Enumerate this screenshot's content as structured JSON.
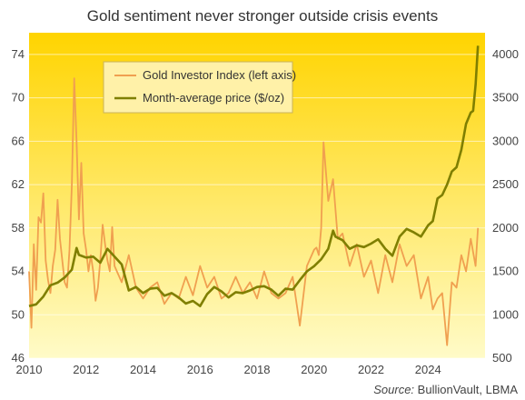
{
  "chart_data": {
    "type": "line",
    "title": "Gold sentiment never stronger outside crisis events",
    "source_label": "Source:",
    "source_text": "BullionVault, LBMA",
    "x_ticks": [
      "2010",
      "2012",
      "2014",
      "2016",
      "2018",
      "2020",
      "2022",
      "2024"
    ],
    "xlim": [
      2010,
      2026
    ],
    "y_left": {
      "ticks": [
        "46",
        "50",
        "54",
        "58",
        "62",
        "66",
        "70",
        "74"
      ],
      "ylim": [
        46,
        76
      ]
    },
    "y_right": {
      "ticks": [
        "500",
        "1000",
        "1500",
        "2000",
        "2500",
        "3000",
        "3500",
        "4000"
      ],
      "ylim": [
        500,
        4250
      ]
    },
    "grid": "horizontal",
    "legend_position": "top-left",
    "colors": {
      "bg_top": "#ffd400",
      "bg_bottom": "#fffbc8",
      "index": "#f0a050",
      "price": "#7f7f00"
    },
    "series": [
      {
        "name": "Gold Investor Index (left axis)",
        "axis": "left",
        "x": [
          2010.0,
          2010.083,
          2010.167,
          2010.25,
          2010.333,
          2010.417,
          2010.5,
          2010.583,
          2010.667,
          2010.75,
          2010.833,
          2010.917,
          2011.0,
          2011.083,
          2011.167,
          2011.25,
          2011.333,
          2011.417,
          2011.5,
          2011.583,
          2011.667,
          2011.75,
          2011.833,
          2011.917,
          2012.0,
          2012.083,
          2012.167,
          2012.25,
          2012.333,
          2012.417,
          2012.5,
          2012.583,
          2012.667,
          2012.75,
          2012.833,
          2012.917,
          2013.0,
          2013.25,
          2013.5,
          2013.75,
          2014.0,
          2014.25,
          2014.5,
          2014.75,
          2015.0,
          2015.25,
          2015.5,
          2015.75,
          2016.0,
          2016.25,
          2016.5,
          2016.75,
          2017.0,
          2017.25,
          2017.5,
          2017.75,
          2018.0,
          2018.25,
          2018.5,
          2018.75,
          2019.0,
          2019.25,
          2019.5,
          2019.75,
          2020.0,
          2020.083,
          2020.167,
          2020.25,
          2020.333,
          2020.5,
          2020.667,
          2020.833,
          2021.0,
          2021.25,
          2021.5,
          2021.75,
          2022.0,
          2022.25,
          2022.5,
          2022.75,
          2023.0,
          2023.25,
          2023.5,
          2023.75,
          2024.0,
          2024.167,
          2024.333,
          2024.5,
          2024.667,
          2024.833,
          2025.0,
          2025.167,
          2025.333,
          2025.5,
          2025.667,
          2025.75
        ],
        "values": [
          54.0,
          48.8,
          56.5,
          52.3,
          59.0,
          58.5,
          61.2,
          55.0,
          53.2,
          52.0,
          54.5,
          56.0,
          60.6,
          57.0,
          55.0,
          53.0,
          52.5,
          56.0,
          62.0,
          71.8,
          66.0,
          58.8,
          64.0,
          57.5,
          56.0,
          54.0,
          55.5,
          54.0,
          51.3,
          52.5,
          55.0,
          58.3,
          56.5,
          55.0,
          54.0,
          58.1,
          54.5,
          53.0,
          55.5,
          52.5,
          51.5,
          52.5,
          53.0,
          51.0,
          52.0,
          51.5,
          53.5,
          51.8,
          54.5,
          52.5,
          53.5,
          51.5,
          52.0,
          53.5,
          52.0,
          53.0,
          51.5,
          54.0,
          52.0,
          51.5,
          52.0,
          53.5,
          49.0,
          54.5,
          56.0,
          56.2,
          55.5,
          58.0,
          65.9,
          60.5,
          62.5,
          57.0,
          57.5,
          54.5,
          56.5,
          53.5,
          55.0,
          52.0,
          55.5,
          53.0,
          56.5,
          54.5,
          55.5,
          51.5,
          53.5,
          50.5,
          51.5,
          52.0,
          47.2,
          53.0,
          52.5,
          55.5,
          54.0,
          57.0,
          54.5,
          58.0
        ]
      },
      {
        "name": "Month-average price ($/oz)",
        "axis": "right",
        "x": [
          2010.0,
          2010.25,
          2010.5,
          2010.75,
          2011.0,
          2011.25,
          2011.5,
          2011.667,
          2011.75,
          2012.0,
          2012.25,
          2012.5,
          2012.75,
          2013.0,
          2013.25,
          2013.5,
          2013.75,
          2014.0,
          2014.25,
          2014.5,
          2014.75,
          2015.0,
          2015.25,
          2015.5,
          2015.75,
          2016.0,
          2016.25,
          2016.5,
          2016.75,
          2017.0,
          2017.25,
          2017.5,
          2017.75,
          2018.0,
          2018.25,
          2018.5,
          2018.75,
          2019.0,
          2019.25,
          2019.5,
          2019.75,
          2020.0,
          2020.25,
          2020.5,
          2020.667,
          2020.75,
          2021.0,
          2021.25,
          2021.5,
          2021.75,
          2022.0,
          2022.25,
          2022.5,
          2022.75,
          2023.0,
          2023.25,
          2023.5,
          2023.75,
          2024.0,
          2024.167,
          2024.333,
          2024.5,
          2024.667,
          2024.833,
          2025.0,
          2025.167,
          2025.333,
          2025.5,
          2025.583,
          2025.667,
          2025.75
        ],
        "values": [
          1100,
          1120,
          1210,
          1340,
          1370,
          1430,
          1520,
          1770,
          1690,
          1660,
          1670,
          1600,
          1760,
          1670,
          1580,
          1280,
          1320,
          1250,
          1300,
          1310,
          1220,
          1250,
          1200,
          1130,
          1160,
          1100,
          1240,
          1320,
          1270,
          1200,
          1260,
          1250,
          1280,
          1320,
          1330,
          1290,
          1220,
          1300,
          1290,
          1400,
          1500,
          1560,
          1640,
          1760,
          1970,
          1900,
          1860,
          1760,
          1800,
          1780,
          1820,
          1870,
          1760,
          1680,
          1900,
          1990,
          1950,
          1900,
          2030,
          2080,
          2340,
          2380,
          2500,
          2650,
          2700,
          2900,
          3200,
          3330,
          3350,
          3650,
          4100
        ]
      }
    ]
  }
}
